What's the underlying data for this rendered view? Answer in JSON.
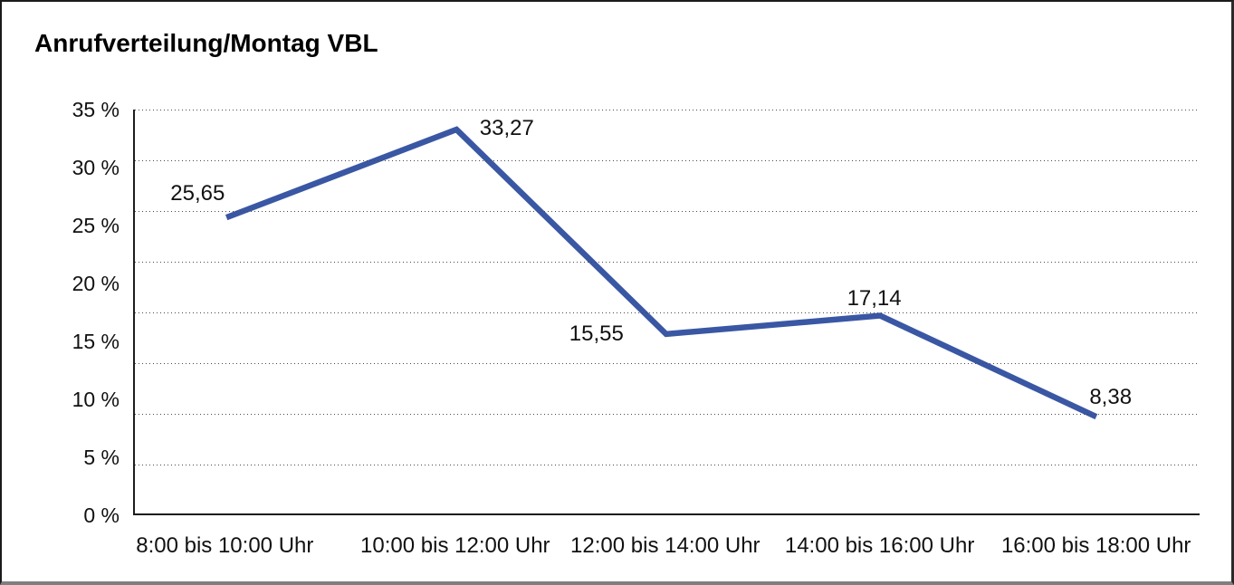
{
  "chart_data": {
    "type": "line",
    "title": "Anrufverteilung/Montag VBL",
    "categories": [
      "8:00 bis 10:00 Uhr",
      "10:00 bis 12:00 Uhr",
      "12:00 bis 14:00 Uhr",
      "14:00 bis 16:00 Uhr",
      "16:00 bis 18:00 Uhr"
    ],
    "values": [
      25.65,
      33.27,
      15.55,
      17.14,
      8.38
    ],
    "value_labels": [
      "25,65",
      "33,27",
      "15,55",
      "17,14",
      "8,38"
    ],
    "y_tick_labels": [
      "35 %",
      "30 %",
      "25 %",
      "20 %",
      "15 %",
      "10 %",
      "5 %",
      "0 %"
    ],
    "ylim": [
      0,
      35
    ],
    "y_tick_step": 5,
    "xlabel": "",
    "ylabel": "",
    "legend": "none",
    "grid": "horizontal-dotted",
    "gridline_count": 8,
    "line_color": "#3A57A4",
    "axis_color": "#1d1d1d",
    "text_color": "#111111",
    "background_color": "#ffffff"
  }
}
